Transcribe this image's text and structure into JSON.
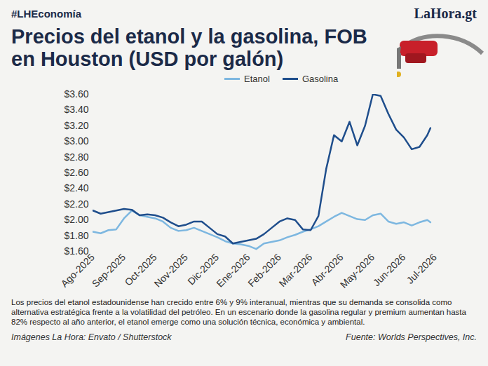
{
  "header": {
    "tag": "#LHEconomía",
    "brand": "LaHora.gt"
  },
  "chart_data": {
    "type": "line",
    "title": "Precios del etanol y la gasolina, FOB en Houston (USD por galón)",
    "x": [
      0,
      0.25,
      0.5,
      0.75,
      1,
      1.25,
      1.5,
      1.75,
      2,
      2.25,
      2.5,
      2.75,
      3,
      3.25,
      3.5,
      3.75,
      4,
      4.25,
      4.5,
      4.75,
      5,
      5.25,
      5.5,
      5.75,
      6,
      6.25,
      6.5,
      6.75,
      7,
      7.25,
      7.5,
      7.75,
      8,
      8.25,
      8.5,
      8.75,
      9,
      9.25,
      9.5,
      9.75,
      10,
      10.25,
      10.5,
      10.75,
      10.85
    ],
    "xlim": [
      0,
      11
    ],
    "xticks": [
      {
        "value": 0,
        "label": "Ago-2025"
      },
      {
        "value": 1,
        "label": "Sep-2025"
      },
      {
        "value": 2,
        "label": "Oct-2025"
      },
      {
        "value": 3,
        "label": "Nov-2025"
      },
      {
        "value": 4,
        "label": "Dic-2025"
      },
      {
        "value": 5,
        "label": "Ene-2026"
      },
      {
        "value": 6,
        "label": "Feb-2026"
      },
      {
        "value": 7,
        "label": "Mar-2026"
      },
      {
        "value": 8,
        "label": "Abr-2026"
      },
      {
        "value": 9,
        "label": "May-2026"
      },
      {
        "value": 10,
        "label": "Jun-2026"
      },
      {
        "value": 11,
        "label": "Jul-2026"
      }
    ],
    "ylim": [
      1.6,
      3.6
    ],
    "yticks": [
      {
        "value": 1.6,
        "label": "$1.60"
      },
      {
        "value": 1.8,
        "label": "$1.80"
      },
      {
        "value": 2.0,
        "label": "$2.00"
      },
      {
        "value": 2.2,
        "label": "$2.20"
      },
      {
        "value": 2.4,
        "label": "$2.40"
      },
      {
        "value": 2.6,
        "label": "$2.60"
      },
      {
        "value": 2.8,
        "label": "$2.80"
      },
      {
        "value": 3.0,
        "label": "$3.00"
      },
      {
        "value": 3.2,
        "label": "$3.20"
      },
      {
        "value": 3.4,
        "label": "$3.40"
      },
      {
        "value": 3.6,
        "label": "$3.60"
      }
    ],
    "grid": false,
    "legend": "top",
    "series": [
      {
        "name": "Etanol",
        "color": "#7db7e0",
        "values": [
          1.85,
          1.83,
          1.87,
          1.88,
          2.02,
          2.12,
          2.06,
          2.04,
          2.02,
          1.98,
          1.9,
          1.86,
          1.87,
          1.9,
          1.86,
          1.82,
          1.78,
          1.73,
          1.7,
          1.69,
          1.67,
          1.63,
          1.7,
          1.72,
          1.74,
          1.78,
          1.81,
          1.85,
          1.88,
          1.92,
          1.98,
          2.04,
          2.09,
          2.05,
          2.01,
          2.0,
          2.06,
          2.08,
          1.98,
          1.95,
          1.97,
          1.93,
          1.97,
          2.0,
          1.97
        ]
      },
      {
        "name": "Gasolina",
        "color": "#1f4e8c",
        "values": [
          2.12,
          2.08,
          2.1,
          2.12,
          2.14,
          2.13,
          2.06,
          2.07,
          2.06,
          2.03,
          1.97,
          1.92,
          1.94,
          1.98,
          1.98,
          1.9,
          1.82,
          1.79,
          1.7,
          1.72,
          1.74,
          1.76,
          1.82,
          1.9,
          1.98,
          2.02,
          2.0,
          1.88,
          1.87,
          2.05,
          2.65,
          3.08,
          3.0,
          3.25,
          2.95,
          3.2,
          3.6,
          3.58,
          3.35,
          3.15,
          3.05,
          2.9,
          2.93,
          3.08,
          3.17
        ]
      }
    ]
  },
  "caption": "Los precios del etanol estadounidense han crecido entre 6% y 9% interanual, mientras que su demanda se consolida como alternativa estratégica frente a la volatilidad del petróleo. En un escenario donde la gasolina regular y premium aumentan hasta 82% respecto al año anterior, el etanol emerge como una solución técnica, económica y ambiental.",
  "footer": {
    "credit": "Imágenes La Hora: Envato / Shutterstock",
    "source": "Fuente: Worlds Perspectives, Inc."
  }
}
